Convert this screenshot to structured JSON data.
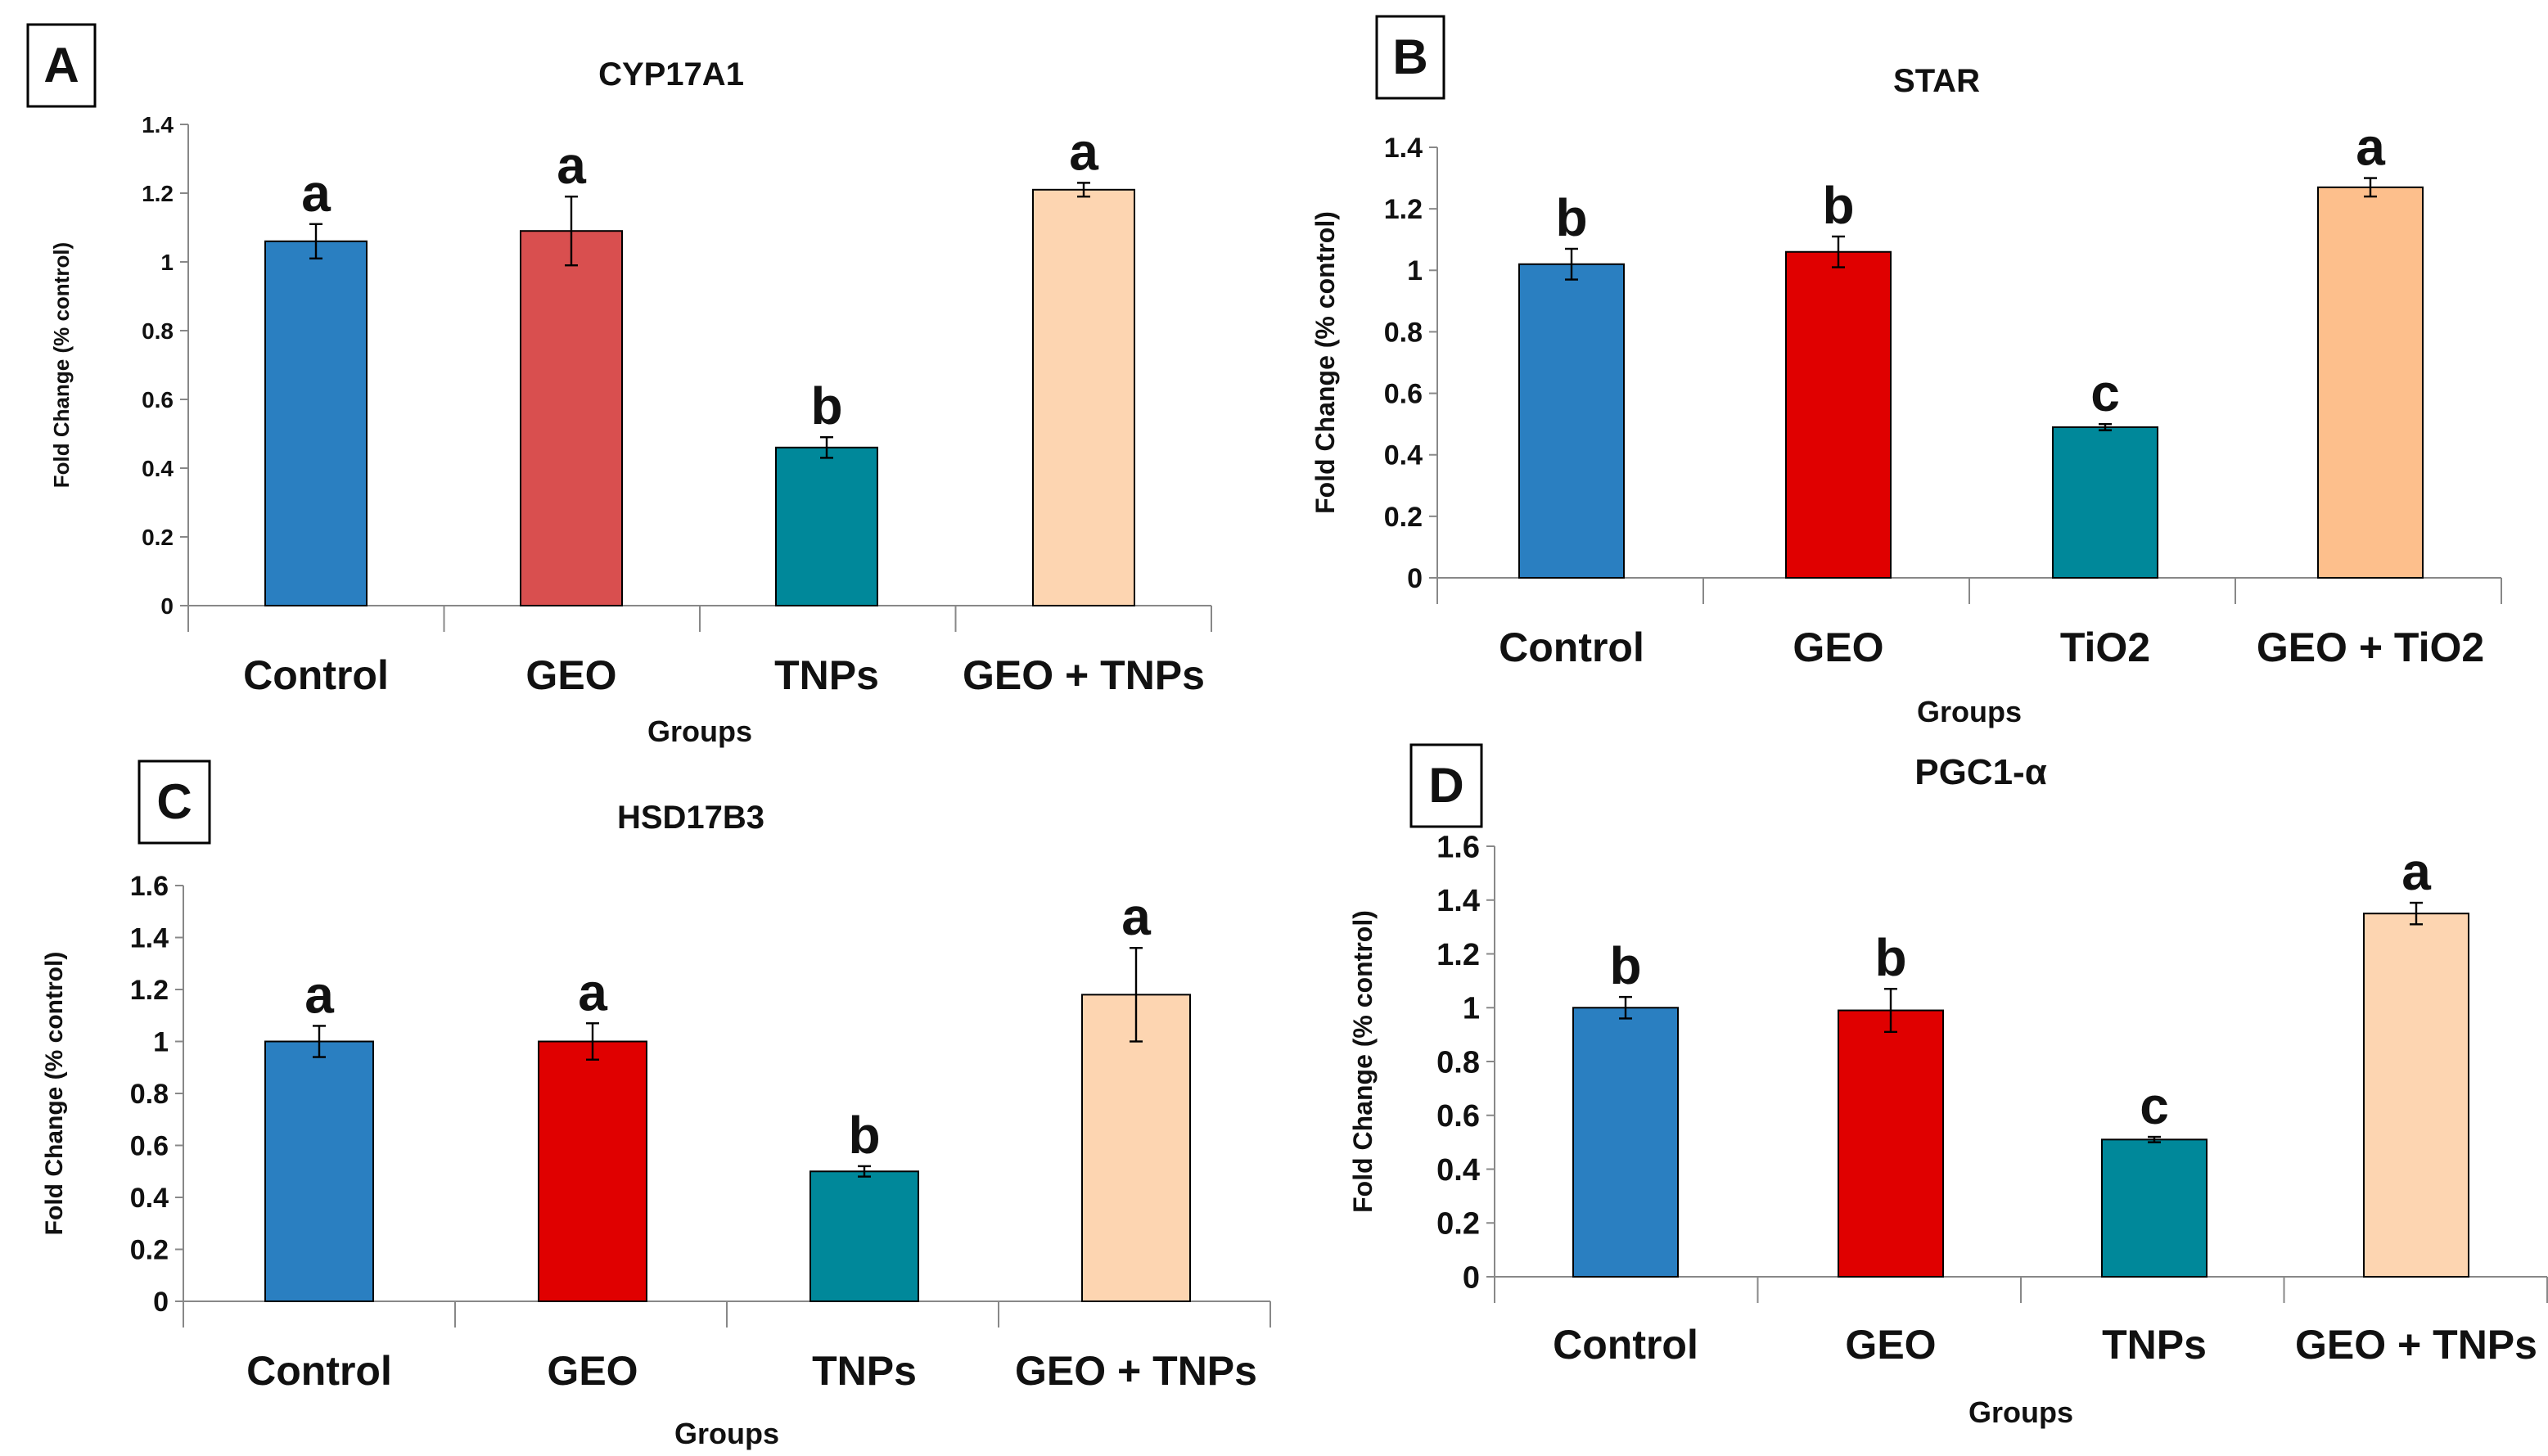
{
  "chart_data": [
    {
      "type": "bar",
      "panel": "A",
      "title": "CYP17A1",
      "xlabel": "Groups",
      "ylabel": "Fold Change (% control)",
      "ylim": [
        0,
        1.4
      ],
      "yticks": [
        "0",
        "0.2",
        "0.4",
        "0.6",
        "0.8",
        "1",
        "1.2",
        "1.4"
      ],
      "categories": [
        "Control",
        "GEO",
        "TNPs",
        "GEO + TNPs"
      ],
      "values": [
        1.06,
        1.09,
        0.46,
        1.21
      ],
      "errors": [
        0.05,
        0.1,
        0.03,
        0.02
      ],
      "letters": [
        "a",
        "a",
        "b",
        "a"
      ],
      "colors": [
        "#2a7fc1",
        "#d94f4f",
        "#00889a",
        "#fdd5b1"
      ],
      "grid": false
    },
    {
      "type": "bar",
      "panel": "B",
      "title": "STAR",
      "xlabel": "Groups",
      "ylabel": "Fold Change (% control)",
      "ylim": [
        0,
        1.4
      ],
      "yticks": [
        "0",
        "0.2",
        "0.4",
        "0.6",
        "0.8",
        "1",
        "1.2",
        "1.4"
      ],
      "categories": [
        "Control",
        "GEO",
        "TiO2",
        "GEO + TiO2"
      ],
      "values": [
        1.02,
        1.06,
        0.49,
        1.27
      ],
      "errors": [
        0.05,
        0.05,
        0.01,
        0.03
      ],
      "letters": [
        "b",
        "b",
        "c",
        "a"
      ],
      "colors": [
        "#2a7fc1",
        "#e00000",
        "#00889a",
        "#fdbf8c"
      ],
      "grid": false
    },
    {
      "type": "bar",
      "panel": "C",
      "title": "HSD17B3",
      "xlabel": "Groups",
      "ylabel": "Fold Change (% control)",
      "ylim": [
        0,
        1.6
      ],
      "yticks": [
        "0",
        "0.2",
        "0.4",
        "0.6",
        "0.8",
        "1",
        "1.2",
        "1.4",
        "1.6"
      ],
      "categories": [
        "Control",
        "GEO",
        "TNPs",
        "GEO + TNPs"
      ],
      "values": [
        1.0,
        1.0,
        0.5,
        1.18
      ],
      "errors": [
        0.06,
        0.07,
        0.02,
        0.18
      ],
      "letters": [
        "a",
        "a",
        "b",
        "a"
      ],
      "colors": [
        "#2a7fc1",
        "#e00000",
        "#00889a",
        "#fdd5b1"
      ],
      "grid": false
    },
    {
      "type": "bar",
      "panel": "D",
      "title": "PGC1-α",
      "xlabel": "Groups",
      "ylabel": "Fold Change (% control)",
      "ylim": [
        0,
        1.6
      ],
      "yticks": [
        "0",
        "0.2",
        "0.4",
        "0.6",
        "0.8",
        "1",
        "1.2",
        "1.4",
        "1.6"
      ],
      "categories": [
        "Control",
        "GEO",
        "TNPs",
        "GEO + TNPs"
      ],
      "values": [
        1.0,
        0.99,
        0.51,
        1.35
      ],
      "errors": [
        0.04,
        0.08,
        0.01,
        0.04
      ],
      "letters": [
        "b",
        "b",
        "c",
        "a"
      ],
      "colors": [
        "#2a7fc1",
        "#e00000",
        "#00889a",
        "#fdd5b1"
      ],
      "grid": false
    }
  ]
}
